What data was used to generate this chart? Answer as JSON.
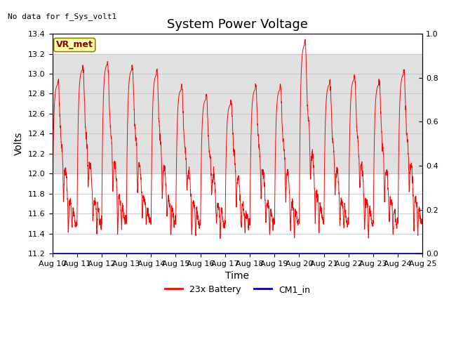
{
  "title": "System Power Voltage",
  "xlabel": "Time",
  "ylabel": "Volts",
  "top_left_text": "No data for f_Sys_volt1",
  "vr_met_label": "VR_met",
  "ylim_left": [
    11.2,
    13.4
  ],
  "ylim_right": [
    0.0,
    1.0
  ],
  "x_tick_days": [
    10,
    11,
    12,
    13,
    14,
    15,
    16,
    17,
    18,
    19,
    20,
    21,
    22,
    23,
    24,
    25
  ],
  "x_tick_labels": [
    "Aug 10",
    "Aug 11",
    "Aug 12",
    "Aug 13",
    "Aug 14",
    "Aug 15",
    "Aug 16",
    "Aug 17",
    "Aug 18",
    "Aug 19",
    "Aug 20",
    "Aug 21",
    "Aug 22",
    "Aug 23",
    "Aug 24",
    "Aug 25"
  ],
  "shaded_ymin": 12.0,
  "shaded_ymax": 13.2,
  "shaded_color": "#e0e0e0",
  "battery_color": "#ff0000",
  "cm1_color": "#0000bb",
  "battery_label": "23x Battery",
  "cm1_label": "CM1_in",
  "cm1_value": 11.2,
  "background_color": "#ffffff",
  "title_fontsize": 13,
  "axis_label_fontsize": 10,
  "tick_fontsize": 8,
  "legend_fontsize": 9,
  "vr_box_facecolor": "#ffffaa",
  "vr_box_edgecolor": "#888800",
  "vr_text_color": "#880000"
}
